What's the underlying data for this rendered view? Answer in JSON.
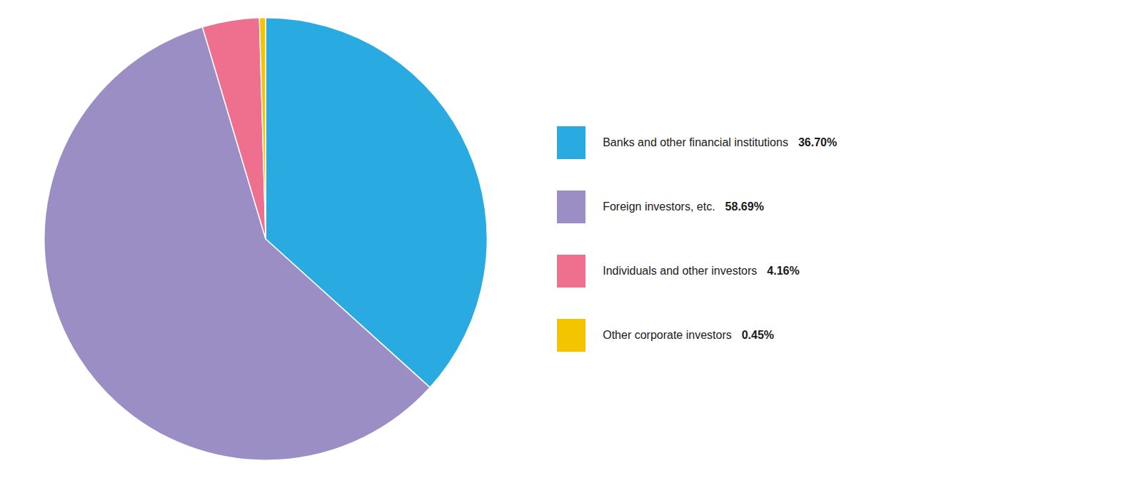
{
  "chart_data": {
    "type": "pie",
    "categories": [
      "Banks and other financial institutions",
      "Foreign investors, etc.",
      "Individuals and other investors",
      "Other corporate investors"
    ],
    "values": [
      36.7,
      58.69,
      4.16,
      0.45
    ],
    "value_labels": [
      "36.70%",
      "58.69%",
      "4.16%",
      "0.45%"
    ],
    "colors": [
      "#29ABE2",
      "#9B8EC4",
      "#EE6F8E",
      "#F5C400"
    ],
    "legend": "right"
  }
}
